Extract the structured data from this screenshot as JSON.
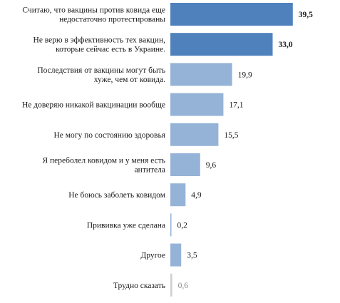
{
  "chart_data": {
    "type": "bar",
    "orientation": "horizontal",
    "title": "",
    "xlabel": "",
    "ylabel": "",
    "grid": false,
    "xlim": [
      0,
      40
    ],
    "categories": [
      "Считаю, что вакцины против ковида еще недостаточно протестированы",
      "Не верю в эффективность тех вакцин, которые сейчас есть в Украине.",
      "Последствия от вакцины могут быть хуже, чем от ковида.",
      "Не доверяю никакой вакцинации вообще",
      "Не могу по состоянию здоровья",
      "Я переболел ковидом и у меня есть антитела",
      "Не боюсь заболеть ковидом",
      "Прививка уже сделана",
      "Другое",
      "Трудно сказать"
    ],
    "category_lines": [
      [
        "Считаю, что вакцины против ковида еще",
        "недостаточно протестированы"
      ],
      [
        "Не верю в эффективность тех вакцин,",
        "которые сейчас есть в Украине."
      ],
      [
        "Последствия от вакцины могут быть",
        "хуже, чем от ковида."
      ],
      [
        "Не доверяю никакой вакцинации вообще"
      ],
      [
        "Не могу по состоянию здоровья"
      ],
      [
        "Я переболел ковидом и у меня есть",
        "антитела"
      ],
      [
        "Не боюсь заболеть ковидом"
      ],
      [
        "Прививка уже сделана"
      ],
      [
        "Другое"
      ],
      [
        "Трудно сказать"
      ]
    ],
    "values": [
      39.5,
      33.0,
      19.9,
      17.1,
      15.5,
      9.6,
      4.9,
      0.2,
      3.5,
      0.6
    ],
    "value_labels": [
      "39,5",
      "33,0",
      "19,9",
      "17,1",
      "15,5",
      "9,6",
      "4,9",
      "0,2",
      "3,5",
      "0,6"
    ],
    "bar_colors": [
      "#4f81bd",
      "#4f81bd",
      "#95b3d7",
      "#95b3d7",
      "#95b3d7",
      "#95b3d7",
      "#95b3d7",
      "#95b3d7",
      "#95b3d7",
      "#d0d0d0"
    ],
    "label_colors": [
      "#1a1a1a",
      "#1a1a1a",
      "#1a1a1a",
      "#1a1a1a",
      "#1a1a1a",
      "#1a1a1a",
      "#1a1a1a",
      "#1a1a1a",
      "#1a1a1a",
      "#8a8a8a"
    ],
    "label_bold": [
      true,
      true,
      false,
      false,
      false,
      false,
      false,
      false,
      false,
      false
    ]
  }
}
